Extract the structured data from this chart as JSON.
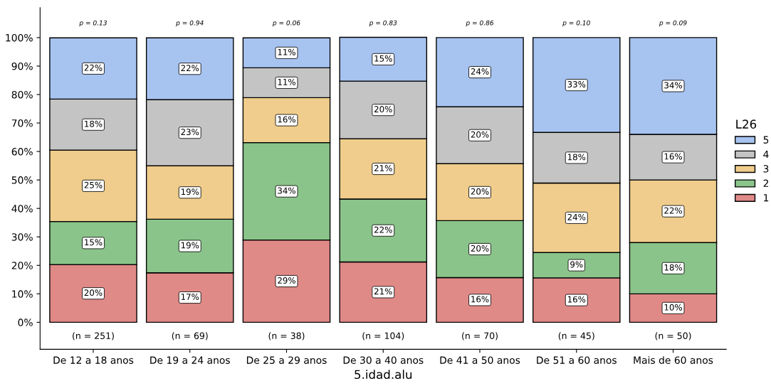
{
  "chart_data": {
    "type": "bar",
    "stacked": true,
    "xlabel": "5.idad.alu",
    "legend_title": "L26",
    "legend": "right",
    "grid": false,
    "categories": [
      "De 12 a 18 anos",
      "De 19 a 24 anos",
      "De 25 a 29 anos",
      "De 30 a 40 anos",
      "De 41 a 50 anos",
      "De 51 a 60 anos",
      "Mais de 60 anos"
    ],
    "ylim": [
      -9.5,
      110.5
    ],
    "yticks": [
      {
        "value": 0,
        "label": "0%"
      },
      {
        "value": 10,
        "label": "10%"
      },
      {
        "value": 20,
        "label": "20%"
      },
      {
        "value": 30,
        "label": "30%"
      },
      {
        "value": 40,
        "label": "40%"
      },
      {
        "value": 50,
        "label": "50%"
      },
      {
        "value": 60,
        "label": "60%"
      },
      {
        "value": 70,
        "label": "70%"
      },
      {
        "value": 80,
        "label": "80%"
      },
      {
        "value": 90,
        "label": "90%"
      },
      {
        "value": 100,
        "label": "100%"
      }
    ],
    "series": [
      {
        "name": "1",
        "color": "#e08a88",
        "values": [
          20.3,
          17.4,
          28.9,
          21.2,
          15.7,
          15.6,
          10.0
        ],
        "value_labels": [
          "20%",
          "17%",
          "29%",
          "21%",
          "16%",
          "16%",
          "10%"
        ]
      },
      {
        "name": "2",
        "color": "#8ac48a",
        "values": [
          15.1,
          18.8,
          34.2,
          22.1,
          20.0,
          8.9,
          18.0
        ],
        "value_labels": [
          "15%",
          "19%",
          "34%",
          "22%",
          "20%",
          "9%",
          "18%"
        ]
      },
      {
        "name": "3",
        "color": "#f0cd8c",
        "values": [
          25.1,
          18.8,
          15.8,
          21.2,
          20.0,
          24.4,
          22.0
        ],
        "value_labels": [
          "25%",
          "19%",
          "16%",
          "21%",
          "20%",
          "24%",
          "22%"
        ]
      },
      {
        "name": "4",
        "color": "#c4c4c4",
        "values": [
          17.9,
          23.2,
          10.5,
          20.2,
          20.0,
          17.8,
          16.0
        ],
        "value_labels": [
          "18%",
          "23%",
          "11%",
          "20%",
          "20%",
          "18%",
          "16%"
        ]
      },
      {
        "name": "5",
        "color": "#a7c3f0",
        "values": [
          21.5,
          21.7,
          10.5,
          15.4,
          24.3,
          33.3,
          34.0
        ],
        "value_labels": [
          "22%",
          "22%",
          "11%",
          "15%",
          "24%",
          "33%",
          "34%"
        ]
      }
    ],
    "annotations": [
      "p = 0.13",
      "p = 0.94",
      "p = 0.06",
      "p = 0.83",
      "p = 0.86",
      "p = 0.10",
      "p = 0.09",
      "(n = 251)",
      "(n = 69)",
      "(n = 38)",
      "(n = 104)",
      "(n = 70)",
      "(n = 45)",
      "(n = 50)"
    ]
  }
}
